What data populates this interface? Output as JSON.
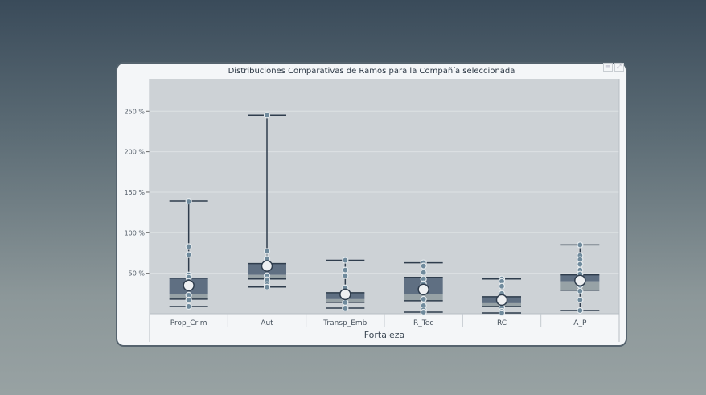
{
  "chart_data": {
    "type": "box",
    "title": "Distribuciones Comparativas de Ramos para la Compañía seleccionada",
    "xlabel": "Fortaleza",
    "ylabel": "",
    "ylim": [
      0,
      290
    ],
    "yticks": [
      {
        "v": 50,
        "label": "50 %"
      },
      {
        "v": 100,
        "label": "100 %"
      },
      {
        "v": 150,
        "label": "150 %"
      },
      {
        "v": 200,
        "label": "200 %"
      },
      {
        "v": 250,
        "label": "250 %"
      }
    ],
    "categories": [
      "Prop_Crim",
      "Aut",
      "Transp_Emb",
      "R_Tec",
      "RC",
      "A_P"
    ],
    "boxes": [
      {
        "min": 9,
        "q1": 18,
        "median": 24,
        "q3": 44,
        "max": 139,
        "mean": 35,
        "points": [
          139,
          83,
          73,
          48,
          45,
          40,
          35,
          23,
          17,
          9
        ]
      },
      {
        "min": 33,
        "q1": 43,
        "median": 48,
        "q3": 62,
        "max": 245,
        "mean": 59,
        "points": [
          245,
          77,
          68,
          58,
          47,
          42,
          36,
          33
        ]
      },
      {
        "min": 7,
        "q1": 14,
        "median": 18,
        "q3": 26,
        "max": 66,
        "mean": 24,
        "points": [
          66,
          54,
          47,
          32,
          20,
          14,
          7
        ]
      },
      {
        "min": 2,
        "q1": 16,
        "median": 24,
        "q3": 45,
        "max": 63,
        "mean": 30,
        "points": [
          63,
          59,
          51,
          43,
          37,
          30,
          18,
          10,
          5,
          2
        ]
      },
      {
        "min": 1,
        "q1": 9,
        "median": 13,
        "q3": 21,
        "max": 43,
        "mean": 17,
        "points": [
          43,
          40,
          34,
          25,
          17,
          8,
          3,
          1
        ]
      },
      {
        "min": 4,
        "q1": 29,
        "median": 40,
        "q3": 48,
        "max": 85,
        "mean": 41,
        "points": [
          85,
          72,
          67,
          61,
          54,
          49,
          44,
          35,
          28,
          17,
          4
        ]
      }
    ],
    "colors": {
      "box_upper": "#5f6f82",
      "box_lower": "#97a2a6",
      "line": "#2f3d4d",
      "point": "#6f8a9c",
      "mean_fill": "#eef0f2",
      "plot_bg": "#cdd2d6"
    }
  },
  "menu": {
    "icons": [
      "menu-icon",
      "expand-icon"
    ]
  }
}
